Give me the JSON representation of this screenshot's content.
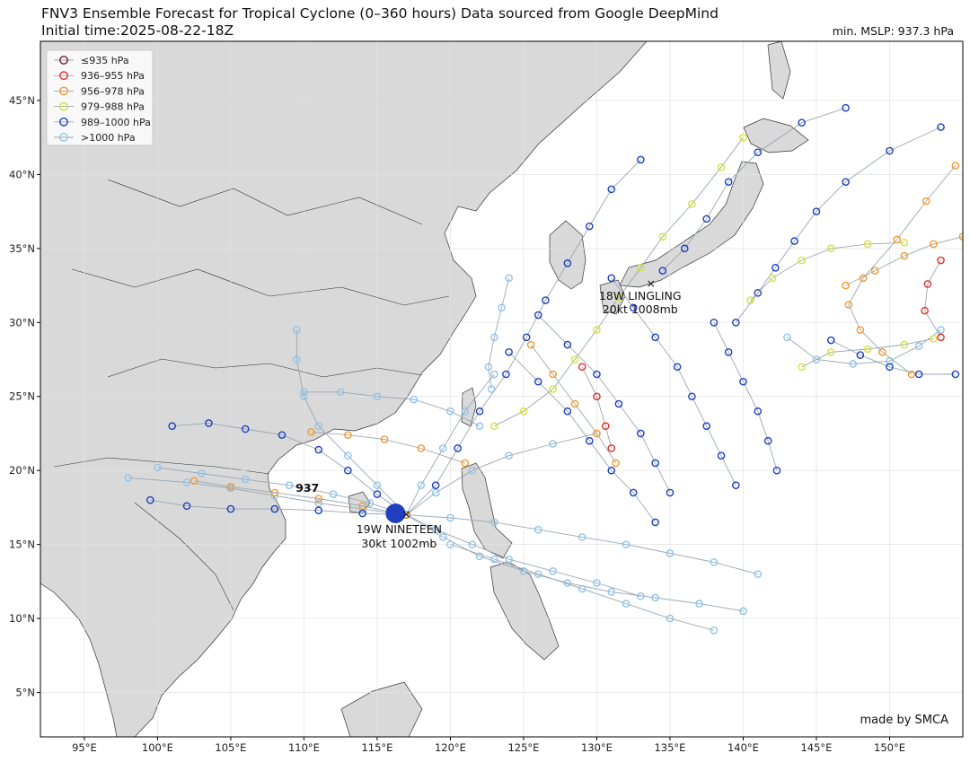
{
  "header": {
    "title_line1": "FNV3 Ensemble Forecast for Tropical Cyclone (0–360 hours) Data sourced from Google DeepMind",
    "title_line2": "Initial time:2025-08-22-18Z",
    "min_mslp": "min. MSLP: 937.3 hPa"
  },
  "map": {
    "extent": {
      "lon_min": 92,
      "lon_max": 155,
      "lat_min": 2,
      "lat_max": 49
    },
    "lon_ticks": [
      "95°E",
      "100°E",
      "105°E",
      "110°E",
      "115°E",
      "120°E",
      "125°E",
      "130°E",
      "135°E",
      "140°E",
      "145°E",
      "150°E"
    ],
    "lat_ticks": [
      "5°N",
      "10°N",
      "15°N",
      "20°N",
      "25°N",
      "30°N",
      "35°N",
      "40°N",
      "45°N"
    ],
    "land_color": "#d9d9d9",
    "ocean_color": "#ffffff",
    "grid": true
  },
  "legend": {
    "items": [
      {
        "label": "≤935 hPa",
        "color": "#7a1a2a"
      },
      {
        "label": "936–955 hPa",
        "color": "#e0302a"
      },
      {
        "label": "956–978 hPa",
        "color": "#f39a2b"
      },
      {
        "label": "979–988 hPa",
        "color": "#d6e23a"
      },
      {
        "label": "989–1000 hPa",
        "color": "#1f3fbf"
      },
      {
        "label": ">1000 hPa",
        "color": "#8ec4ec"
      }
    ]
  },
  "storms": [
    {
      "name": "19W NINETEEN",
      "info": "30kt 1002mb",
      "lon": 116.5,
      "lat": 17.1
    },
    {
      "name": "18W LINGLING",
      "info": "20kt 1008mb",
      "lon": 133.7,
      "lat": 32.7
    }
  ],
  "min_marker": {
    "label": "937",
    "lon": 109.8,
    "lat": 18.3
  },
  "credit": "made by SMCA",
  "tracks": [
    {
      "color": "#8ec4ec",
      "pts": [
        [
          117,
          17
        ],
        [
          114,
          17.4
        ],
        [
          111,
          17.8
        ],
        [
          108,
          18.3
        ],
        [
          105,
          18.8
        ],
        [
          102,
          19.2
        ],
        [
          98,
          19.5
        ]
      ]
    },
    {
      "color": "#8ec4ec",
      "pts": [
        [
          117,
          17
        ],
        [
          114.5,
          17.8
        ],
        [
          112,
          18.4
        ],
        [
          109,
          19
        ],
        [
          106,
          19.4
        ],
        [
          103,
          19.8
        ],
        [
          100,
          20.2
        ]
      ]
    },
    {
      "color": "#8ec4ec",
      "pts": [
        [
          117,
          17
        ],
        [
          115,
          19
        ],
        [
          113,
          21
        ],
        [
          111,
          23
        ],
        [
          110,
          25
        ],
        [
          109.5,
          27.5
        ],
        [
          109.5,
          29.5
        ]
      ]
    },
    {
      "color": "#8ec4ec",
      "pts": [
        [
          117,
          17
        ],
        [
          118,
          19
        ],
        [
          119.5,
          21.5
        ],
        [
          121,
          24
        ],
        [
          123,
          26.5
        ]
      ]
    },
    {
      "color": "#8ec4ec",
      "pts": [
        [
          117,
          17
        ],
        [
          119,
          18.5
        ],
        [
          121.5,
          20
        ],
        [
          124,
          21
        ],
        [
          127,
          21.8
        ],
        [
          130,
          22.5
        ]
      ]
    },
    {
      "color": "#8ec4ec",
      "pts": [
        [
          117,
          17
        ],
        [
          119,
          16
        ],
        [
          121.5,
          15
        ],
        [
          124,
          14
        ],
        [
          127,
          13.2
        ],
        [
          130,
          12.4
        ],
        [
          133,
          11.5
        ]
      ]
    },
    {
      "color": "#8ec4ec",
      "pts": [
        [
          117,
          17
        ],
        [
          119.5,
          15.5
        ],
        [
          122,
          14.2
        ],
        [
          125,
          13.2
        ],
        [
          128,
          12.4
        ],
        [
          131,
          11.8
        ],
        [
          134,
          11.4
        ],
        [
          137,
          11
        ],
        [
          140,
          10.5
        ]
      ]
    },
    {
      "color": "#8ec4ec",
      "pts": [
        [
          117,
          17
        ],
        [
          120,
          16.8
        ],
        [
          123,
          16.5
        ],
        [
          126,
          16
        ],
        [
          129,
          15.5
        ],
        [
          132,
          15
        ],
        [
          135,
          14.4
        ],
        [
          138,
          13.8
        ],
        [
          141,
          13
        ]
      ]
    },
    {
      "color": "#8ec4ec",
      "pts": [
        [
          120,
          15
        ],
        [
          123,
          14
        ],
        [
          126,
          13
        ],
        [
          129,
          12
        ],
        [
          132,
          11
        ],
        [
          135,
          10
        ],
        [
          138,
          9.2
        ]
      ]
    },
    {
      "color": "#8ec4ec",
      "pts": [
        [
          143,
          29
        ],
        [
          145,
          27.5
        ],
        [
          147.5,
          27.2
        ],
        [
          150,
          27.4
        ],
        [
          152,
          28.4
        ],
        [
          153.5,
          29.5
        ]
      ]
    },
    {
      "color": "#8ec4ec",
      "pts": [
        [
          124,
          33
        ],
        [
          123.5,
          31
        ],
        [
          123,
          29
        ],
        [
          122.6,
          27
        ],
        [
          122.8,
          25.5
        ]
      ]
    },
    {
      "color": "#8ec4ec",
      "pts": [
        [
          122,
          23
        ],
        [
          120,
          24
        ],
        [
          117.5,
          24.8
        ],
        [
          115,
          25
        ],
        [
          112.5,
          25.3
        ],
        [
          110,
          25.3
        ]
      ]
    },
    {
      "color": "#1f3fbf",
      "pts": [
        [
          117,
          17
        ],
        [
          114,
          17.1
        ],
        [
          111,
          17.3
        ],
        [
          108,
          17.4
        ],
        [
          105,
          17.4
        ],
        [
          102,
          17.6
        ],
        [
          99.5,
          18
        ]
      ]
    },
    {
      "color": "#1f3fbf",
      "pts": [
        [
          117,
          17
        ],
        [
          115,
          18.4
        ],
        [
          113,
          20
        ],
        [
          111,
          21.4
        ],
        [
          108.5,
          22.4
        ],
        [
          106,
          22.8
        ],
        [
          103.5,
          23.2
        ],
        [
          101,
          23
        ]
      ]
    },
    {
      "color": "#1f3fbf",
      "pts": [
        [
          117,
          17
        ],
        [
          119,
          19
        ],
        [
          120.5,
          21.5
        ],
        [
          122,
          24
        ],
        [
          123.8,
          26.5
        ],
        [
          125.2,
          29
        ],
        [
          126.5,
          31.5
        ],
        [
          128,
          34
        ],
        [
          129.5,
          36.5
        ],
        [
          131,
          39
        ],
        [
          133,
          41
        ]
      ]
    },
    {
      "color": "#1f3fbf",
      "pts": [
        [
          124,
          28
        ],
        [
          126,
          26
        ],
        [
          128,
          24
        ],
        [
          129.5,
          22
        ],
        [
          131,
          20
        ],
        [
          132.5,
          18.5
        ],
        [
          134,
          16.5
        ]
      ]
    },
    {
      "color": "#1f3fbf",
      "pts": [
        [
          126,
          30.5
        ],
        [
          128,
          28.5
        ],
        [
          130,
          26.5
        ],
        [
          131.5,
          24.5
        ],
        [
          133,
          22.5
        ],
        [
          134,
          20.5
        ],
        [
          135,
          18.5
        ]
      ]
    },
    {
      "color": "#1f3fbf",
      "pts": [
        [
          131,
          33
        ],
        [
          132.5,
          31
        ],
        [
          134,
          29
        ],
        [
          135.5,
          27
        ],
        [
          136.5,
          25
        ],
        [
          137.5,
          23
        ],
        [
          138.5,
          21
        ],
        [
          139.5,
          19
        ]
      ]
    },
    {
      "color": "#1f3fbf",
      "pts": [
        [
          138,
          30
        ],
        [
          139,
          28
        ],
        [
          140,
          26
        ],
        [
          141,
          24
        ],
        [
          141.7,
          22
        ],
        [
          142.3,
          20
        ]
      ]
    },
    {
      "color": "#1f3fbf",
      "pts": [
        [
          134.5,
          33.5
        ],
        [
          136,
          35
        ],
        [
          137.5,
          37
        ],
        [
          139,
          39.5
        ],
        [
          141,
          41.5
        ],
        [
          144,
          43.5
        ],
        [
          147,
          44.5
        ]
      ]
    },
    {
      "color": "#1f3fbf",
      "pts": [
        [
          139.5,
          30
        ],
        [
          141,
          32
        ],
        [
          142.2,
          33.7
        ],
        [
          143.5,
          35.5
        ],
        [
          145,
          37.5
        ],
        [
          147,
          39.5
        ],
        [
          150,
          41.6
        ],
        [
          153.5,
          43.2
        ]
      ]
    },
    {
      "color": "#1f3fbf",
      "pts": [
        [
          146,
          28.8
        ],
        [
          148,
          27.8
        ],
        [
          150,
          27
        ],
        [
          152,
          26.5
        ],
        [
          154.5,
          26.5
        ]
      ]
    },
    {
      "color": "#d6e23a",
      "pts": [
        [
          123,
          23
        ],
        [
          125,
          24
        ],
        [
          127,
          25.5
        ],
        [
          128.5,
          27.5
        ],
        [
          130,
          29.5
        ],
        [
          131.5,
          31.7
        ],
        [
          133,
          33.7
        ],
        [
          134.5,
          35.8
        ],
        [
          136.5,
          38
        ],
        [
          138.5,
          40.5
        ],
        [
          140,
          42.5
        ]
      ]
    },
    {
      "color": "#d6e23a",
      "pts": [
        [
          140.5,
          31.5
        ],
        [
          142,
          33
        ],
        [
          144,
          34.2
        ],
        [
          146,
          35
        ],
        [
          148.5,
          35.3
        ],
        [
          151,
          35.4
        ]
      ]
    },
    {
      "color": "#d6e23a",
      "pts": [
        [
          144,
          27
        ],
        [
          146,
          28
        ],
        [
          148.5,
          28.2
        ],
        [
          151,
          28.5
        ],
        [
          153,
          28.9
        ]
      ]
    },
    {
      "color": "#f39a2b",
      "pts": [
        [
          117,
          17
        ],
        [
          114,
          17.6
        ],
        [
          111,
          18.1
        ],
        [
          108,
          18.5
        ],
        [
          105,
          18.9
        ],
        [
          102.5,
          19.3
        ]
      ]
    },
    {
      "color": "#f39a2b",
      "pts": [
        [
          121,
          20.5
        ],
        [
          118,
          21.5
        ],
        [
          115.5,
          22.1
        ],
        [
          113,
          22.4
        ],
        [
          110.5,
          22.6
        ]
      ]
    },
    {
      "color": "#f39a2b",
      "pts": [
        [
          125.5,
          28.5
        ],
        [
          127,
          26.5
        ],
        [
          128.5,
          24.5
        ],
        [
          130,
          22.5
        ],
        [
          131.3,
          20.5
        ]
      ]
    },
    {
      "color": "#f39a2b",
      "pts": [
        [
          147,
          32.5
        ],
        [
          149,
          33.5
        ],
        [
          151,
          34.5
        ],
        [
          153,
          35.3
        ],
        [
          155,
          35.8
        ]
      ]
    },
    {
      "color": "#f39a2b",
      "pts": [
        [
          151.5,
          26.5
        ],
        [
          149.5,
          28
        ],
        [
          148,
          29.5
        ],
        [
          147.2,
          31.2
        ],
        [
          148.2,
          33
        ],
        [
          150.5,
          35.6
        ],
        [
          152.5,
          38.2
        ],
        [
          154.5,
          40.6
        ]
      ]
    },
    {
      "color": "#e0302a",
      "pts": [
        [
          129,
          27
        ],
        [
          130,
          25
        ],
        [
          130.6,
          23
        ],
        [
          131,
          21.5
        ]
      ]
    },
    {
      "color": "#e0302a",
      "pts": [
        [
          153.5,
          29
        ],
        [
          152.4,
          30.8
        ],
        [
          152.6,
          32.6
        ],
        [
          153.5,
          34.2
        ]
      ]
    }
  ]
}
